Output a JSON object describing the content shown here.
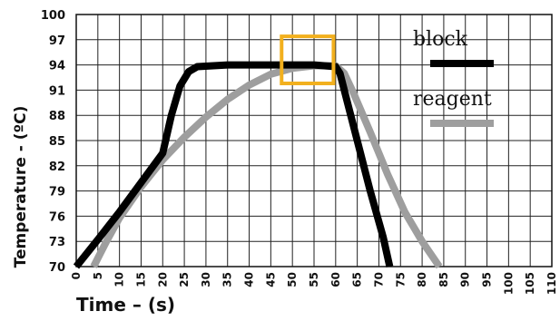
{
  "chart_data": {
    "type": "line",
    "xlabel": "Time – (s)",
    "ylabel": "Temperature - (ºC)",
    "xlim": [
      0,
      110
    ],
    "ylim": [
      70,
      100
    ],
    "x_ticks": [
      0,
      5,
      10,
      15,
      20,
      25,
      30,
      35,
      40,
      45,
      50,
      55,
      60,
      65,
      70,
      75,
      80,
      85,
      90,
      95,
      100,
      105,
      110
    ],
    "y_ticks": [
      70,
      73,
      76,
      79,
      82,
      85,
      88,
      91,
      94,
      97,
      100
    ],
    "grid": true,
    "legend_position": "top-right",
    "series": [
      {
        "name": "block",
        "color": "#000000",
        "points": [
          [
            0,
            70
          ],
          [
            5,
            73.2
          ],
          [
            10,
            76.5
          ],
          [
            15,
            80
          ],
          [
            20,
            83.5
          ],
          [
            22,
            88
          ],
          [
            24,
            91.5
          ],
          [
            26,
            93.2
          ],
          [
            28,
            93.8
          ],
          [
            35,
            94
          ],
          [
            45,
            94
          ],
          [
            55,
            94
          ],
          [
            60,
            93.8
          ],
          [
            61,
            93
          ],
          [
            62,
            91
          ],
          [
            65,
            85
          ],
          [
            68,
            79
          ],
          [
            71,
            73.5
          ],
          [
            72.5,
            70
          ]
        ]
      },
      {
        "name": "reagent",
        "color": "#9e9e9e",
        "points": [
          [
            4,
            70
          ],
          [
            7,
            73
          ],
          [
            10,
            75.8
          ],
          [
            15,
            79.5
          ],
          [
            20,
            82.7
          ],
          [
            25,
            85.4
          ],
          [
            30,
            87.8
          ],
          [
            35,
            89.9
          ],
          [
            40,
            91.6
          ],
          [
            45,
            92.9
          ],
          [
            50,
            93.6
          ],
          [
            55,
            93.9
          ],
          [
            60,
            93.9
          ],
          [
            62,
            93
          ],
          [
            64,
            90.8
          ],
          [
            68,
            86
          ],
          [
            72,
            81
          ],
          [
            76,
            76.5
          ],
          [
            80,
            73
          ],
          [
            84,
            70
          ]
        ]
      }
    ],
    "annotation": {
      "type": "highlight-box",
      "color": "#F2B01E",
      "x_range": [
        47.5,
        59.5
      ],
      "y_range": [
        91.8,
        97.4
      ]
    }
  }
}
